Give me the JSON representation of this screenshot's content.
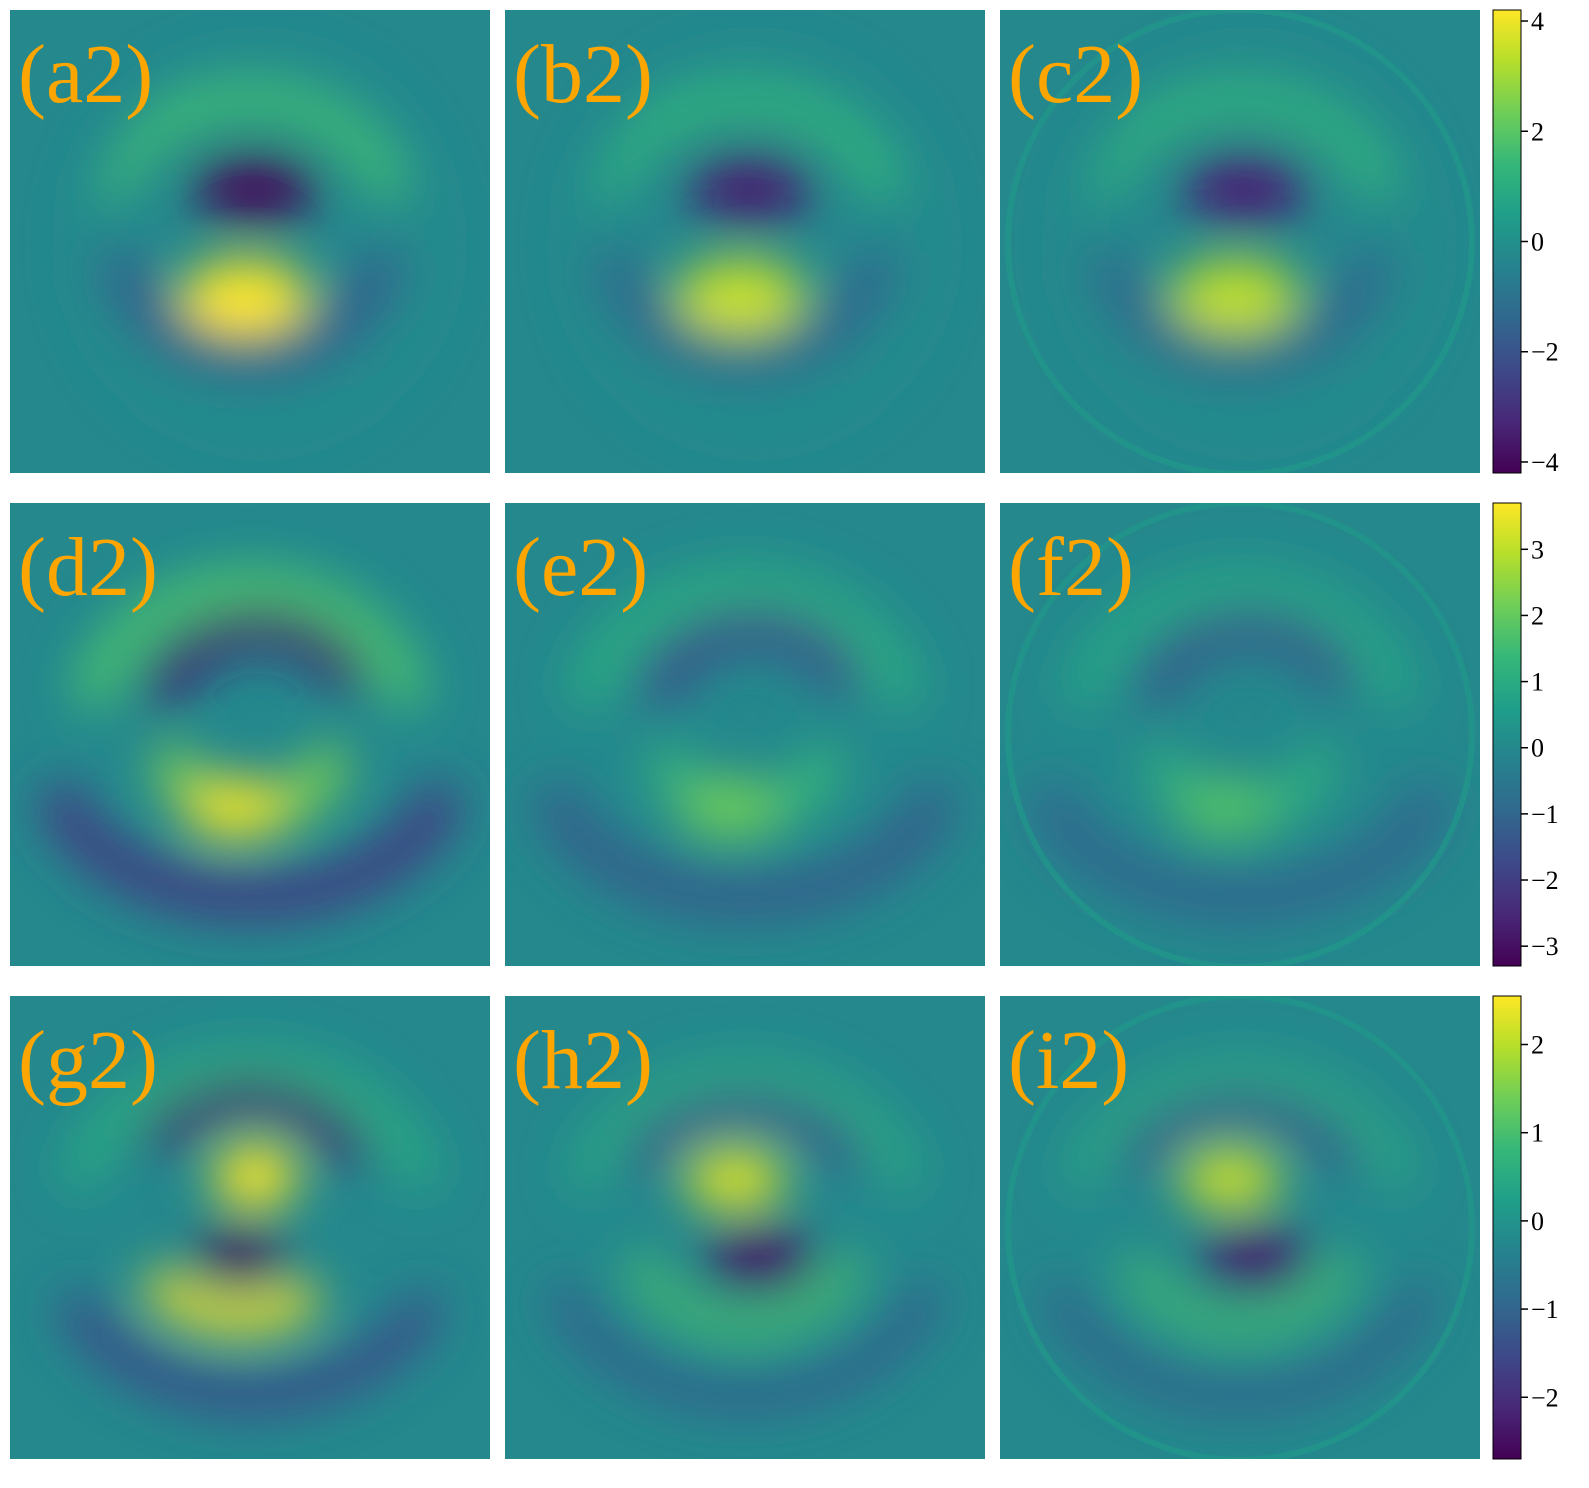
{
  "figure": {
    "label_color": "#FFA500",
    "colormap": "viridis",
    "background": "#ffffff"
  },
  "chart_data": [
    {
      "type": "heatmap",
      "row": 1,
      "colorbar": {
        "range": [
          -4.2,
          4.2
        ],
        "ticks": [
          4,
          2,
          0,
          -2,
          -4
        ],
        "tick_labels": [
          "4",
          "2",
          "0",
          "−2",
          "−4"
        ]
      },
      "panels": [
        {
          "label": "(a2)",
          "pattern": "dipole-neg-top",
          "amplitude": 1.0,
          "edge_artifact": false
        },
        {
          "label": "(b2)",
          "pattern": "dipole-neg-top",
          "amplitude": 0.85,
          "edge_artifact": false
        },
        {
          "label": "(c2)",
          "pattern": "dipole-neg-top",
          "amplitude": 0.82,
          "edge_artifact": true
        }
      ]
    },
    {
      "type": "heatmap",
      "row": 2,
      "colorbar": {
        "range": [
          -3.3,
          3.7
        ],
        "ticks": [
          3,
          2,
          1,
          0,
          -1,
          -2,
          -3
        ],
        "tick_labels": [
          "3",
          "2",
          "1",
          "0",
          "−1",
          "−2",
          "−3"
        ]
      },
      "panels": [
        {
          "label": "(d2)",
          "pattern": "ring-crescent",
          "amplitude": 1.0,
          "edge_artifact": false
        },
        {
          "label": "(e2)",
          "pattern": "ring-crescent",
          "amplitude": 0.6,
          "edge_artifact": false
        },
        {
          "label": "(f2)",
          "pattern": "ring-crescent",
          "amplitude": 0.5,
          "edge_artifact": true
        }
      ]
    },
    {
      "type": "heatmap",
      "row": 3,
      "colorbar": {
        "range": [
          -2.7,
          2.55
        ],
        "ticks": [
          2,
          1,
          0,
          -1,
          -2
        ],
        "tick_labels": [
          "2",
          "1",
          "0",
          "−1",
          "−2"
        ]
      },
      "panels": [
        {
          "label": "(g2)",
          "pattern": "dipole-pos-top-multi",
          "amplitude": 1.0,
          "edge_artifact": false
        },
        {
          "label": "(h2)",
          "pattern": "dipole-pos-top",
          "amplitude": 0.95,
          "edge_artifact": false
        },
        {
          "label": "(i2)",
          "pattern": "dipole-pos-top",
          "amplitude": 0.9,
          "edge_artifact": true
        }
      ]
    }
  ]
}
